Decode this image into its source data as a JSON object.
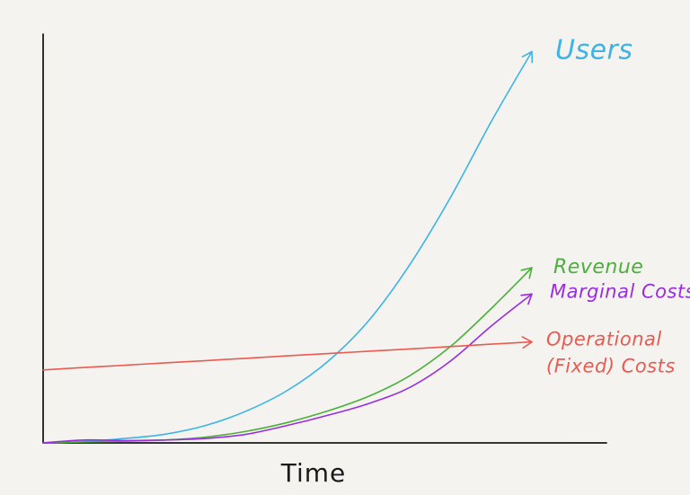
{
  "chart_data": {
    "type": "line",
    "title": "",
    "xlabel": "Time",
    "ylabel": "",
    "grid": false,
    "legend": "inline labels at right end of each series",
    "x": [
      0,
      1,
      2,
      3,
      4,
      5,
      6,
      7,
      8,
      9,
      10,
      11,
      12
    ],
    "series": [
      {
        "name": "Users",
        "label_lines": [
          "Users"
        ],
        "color": "#3cb4e6",
        "values": [
          0,
          0.5,
          1.5,
          3,
          6,
          11,
          18,
          28,
          42,
          61,
          84,
          110,
          134
        ]
      },
      {
        "name": "Revenue",
        "label_lines": [
          "Revenue"
        ],
        "color": "#4caf3c",
        "values": [
          0,
          0.3,
          0.6,
          1,
          2,
          4,
          7,
          11,
          16,
          23,
          33,
          46,
          60
        ]
      },
      {
        "name": "Marginal Costs",
        "label_lines": [
          "Marginal Costs"
        ],
        "color": "#9a2de0",
        "values": [
          0,
          1,
          0.8,
          1,
          1.5,
          3,
          6,
          9.5,
          13.5,
          19,
          28,
          40,
          51
        ]
      },
      {
        "name": "Operational (Fixed) Costs",
        "label_lines": [
          "Operational",
          "(Fixed) Costs"
        ],
        "color": "#ea5a50",
        "values": [
          25,
          25.8,
          26.6,
          27.4,
          28.2,
          29,
          29.8,
          30.6,
          31.4,
          32.2,
          33,
          33.8,
          34.6
        ]
      }
    ],
    "xlim": [
      0,
      13.5
    ],
    "ylim": [
      0,
      140
    ]
  }
}
